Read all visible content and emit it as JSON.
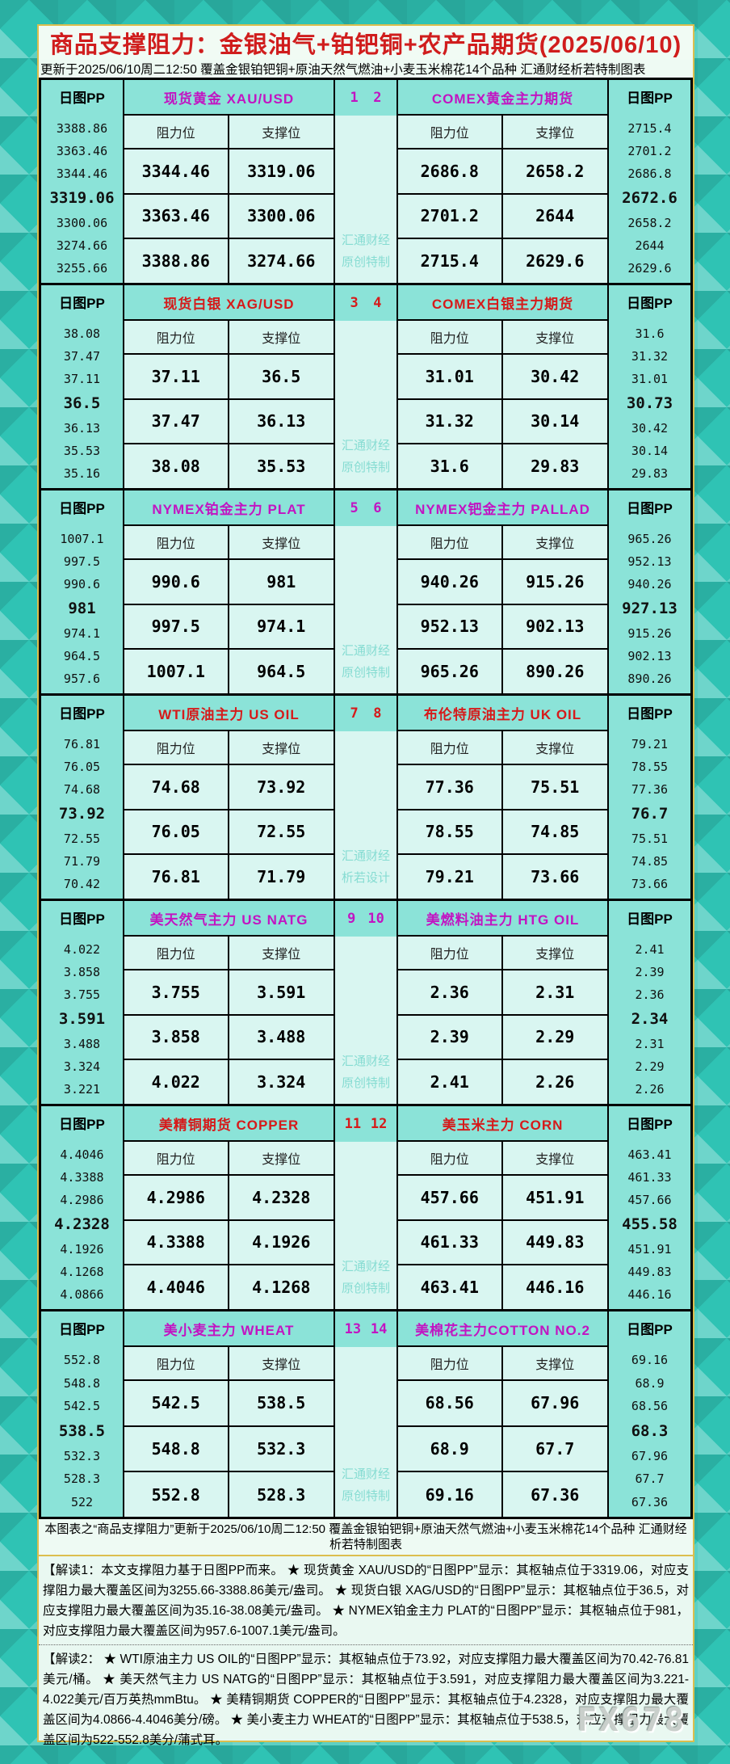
{
  "title": "商品支撑阻力：金银油气+铂钯铜+农产品期货(2025/06/10)",
  "subtitle": "更新于2025/06/10周二12:50  覆盖金银铂钯铜+原油天然气燃油+小麦玉米棉花14个品种  汇通财经析若特制图表",
  "footer_note": "本图表之“商品支撑阻力”更新于2025/06/10周二12:50  覆盖金银铂钯铜+原油天然气燃油+小麦玉米棉花14个品种  汇通财经析若特制图表",
  "interpretation1": "【解读1：本文支撑阻力基于日图PP而来。 ★ 现货黄金 XAU/USD的“日图PP”显示：其枢轴点位于3319.06，对应支撑阻力最大覆盖区间为3255.66-3388.86美元/盎司。 ★ 现货白银 XAG/USD的“日图PP”显示：其枢轴点位于36.5，对应支撑阻力最大覆盖区间为35.16-38.08美元/盎司。 ★ NYMEX铂金主力 PLAT的“日图PP”显示：其枢轴点位于981，对应支撑阻力最大覆盖区间为957.6-1007.1美元/盎司。",
  "interpretation2": "【解读2： ★ WTI原油主力 US OIL的“日图PP”显示：其枢轴点位于73.92，对应支撑阻力最大覆盖区间为70.42-76.81美元/桶。 ★ 美天然气主力 US NATG的“日图PP”显示：其枢轴点位于3.591，对应支撑阻力最大覆盖区间为3.221-4.022美元/百万英热mmBtu。 ★ 美精铜期货 COPPER的“日图PP”显示：其枢轴点位于4.2328，对应支撑阻力最大覆盖区间为4.0866-4.4046美分/磅。 ★ 美小麦主力 WHEAT的“日图PP”显示：其枢轴点位于538.5，对应支撑阻力最大覆盖区间为522-552.8美分/蒲式耳。",
  "fx_watermark": "FX678",
  "chart_data": {
    "type": "table",
    "title": "商品支撑阻力：金银油气+铂钯铜+农产品期货(2025/06/10)",
    "updated": "2025/06/10周二12:50",
    "labels": {
      "pp_header": "日图PP",
      "resistance": "阻力位",
      "support": "支撑位"
    },
    "accent_colors": {
      "magenta": "#c214c2",
      "red": "#d61a1a"
    },
    "panels": [
      {
        "index_left": "1",
        "index_right": "2",
        "accent": "magenta",
        "watermark": [
          "汇通财经",
          "原创特制"
        ],
        "left": {
          "title": "现货黄金 XAU/USD",
          "pp": [
            "3388.86",
            "3363.46",
            "3344.46",
            "3319.06",
            "3300.06",
            "3274.66",
            "3255.66"
          ],
          "rows": [
            [
              "3344.46",
              "3319.06"
            ],
            [
              "3363.46",
              "3300.06"
            ],
            [
              "3388.86",
              "3274.66"
            ]
          ]
        },
        "right": {
          "title": "COMEX黄金主力期货",
          "pp": [
            "2715.4",
            "2701.2",
            "2686.8",
            "2672.6",
            "2658.2",
            "2644",
            "2629.6"
          ],
          "rows": [
            [
              "2686.8",
              "2658.2"
            ],
            [
              "2701.2",
              "2644"
            ],
            [
              "2715.4",
              "2629.6"
            ]
          ]
        }
      },
      {
        "index_left": "3",
        "index_right": "4",
        "accent": "red",
        "watermark": [
          "汇通财经",
          "原创特制"
        ],
        "left": {
          "title": "现货白银 XAG/USD",
          "pp": [
            "38.08",
            "37.47",
            "37.11",
            "36.5",
            "36.13",
            "35.53",
            "35.16"
          ],
          "rows": [
            [
              "37.11",
              "36.5"
            ],
            [
              "37.47",
              "36.13"
            ],
            [
              "38.08",
              "35.53"
            ]
          ]
        },
        "right": {
          "title": "COMEX白银主力期货",
          "pp": [
            "31.6",
            "31.32",
            "31.01",
            "30.73",
            "30.42",
            "30.14",
            "29.83"
          ],
          "rows": [
            [
              "31.01",
              "30.42"
            ],
            [
              "31.32",
              "30.14"
            ],
            [
              "31.6",
              "29.83"
            ]
          ]
        }
      },
      {
        "index_left": "5",
        "index_right": "6",
        "accent": "magenta",
        "watermark": [
          "汇通财经",
          "原创特制"
        ],
        "left": {
          "title": "NYMEX铂金主力 PLAT",
          "pp": [
            "1007.1",
            "997.5",
            "990.6",
            "981",
            "974.1",
            "964.5",
            "957.6"
          ],
          "rows": [
            [
              "990.6",
              "981"
            ],
            [
              "997.5",
              "974.1"
            ],
            [
              "1007.1",
              "964.5"
            ]
          ]
        },
        "right": {
          "title": "NYMEX钯金主力 PALLAD",
          "pp": [
            "965.26",
            "952.13",
            "940.26",
            "927.13",
            "915.26",
            "902.13",
            "890.26"
          ],
          "rows": [
            [
              "940.26",
              "915.26"
            ],
            [
              "952.13",
              "902.13"
            ],
            [
              "965.26",
              "890.26"
            ]
          ]
        }
      },
      {
        "index_left": "7",
        "index_right": "8",
        "accent": "red",
        "watermark": [
          "汇通财经",
          "析若设计"
        ],
        "left": {
          "title": "WTI原油主力 US OIL",
          "pp": [
            "76.81",
            "76.05",
            "74.68",
            "73.92",
            "72.55",
            "71.79",
            "70.42"
          ],
          "rows": [
            [
              "74.68",
              "73.92"
            ],
            [
              "76.05",
              "72.55"
            ],
            [
              "76.81",
              "71.79"
            ]
          ]
        },
        "right": {
          "title": "布伦特原油主力 UK OIL",
          "pp": [
            "79.21",
            "78.55",
            "77.36",
            "76.7",
            "75.51",
            "74.85",
            "73.66"
          ],
          "rows": [
            [
              "77.36",
              "75.51"
            ],
            [
              "78.55",
              "74.85"
            ],
            [
              "79.21",
              "73.66"
            ]
          ]
        }
      },
      {
        "index_left": "9",
        "index_right": "10",
        "accent": "magenta",
        "watermark": [
          "汇通财经",
          "原创特制"
        ],
        "left": {
          "title": "美天然气主力 US NATG",
          "pp": [
            "4.022",
            "3.858",
            "3.755",
            "3.591",
            "3.488",
            "3.324",
            "3.221"
          ],
          "rows": [
            [
              "3.755",
              "3.591"
            ],
            [
              "3.858",
              "3.488"
            ],
            [
              "4.022",
              "3.324"
            ]
          ]
        },
        "right": {
          "title": "美燃料油主力 HTG OIL",
          "pp": [
            "2.41",
            "2.39",
            "2.36",
            "2.34",
            "2.31",
            "2.29",
            "2.26"
          ],
          "rows": [
            [
              "2.36",
              "2.31"
            ],
            [
              "2.39",
              "2.29"
            ],
            [
              "2.41",
              "2.26"
            ]
          ]
        }
      },
      {
        "index_left": "11",
        "index_right": "12",
        "accent": "red",
        "watermark": [
          "汇通财经",
          "原创特制"
        ],
        "left": {
          "title": "美精铜期货 COPPER",
          "pp": [
            "4.4046",
            "4.3388",
            "4.2986",
            "4.2328",
            "4.1926",
            "4.1268",
            "4.0866"
          ],
          "rows": [
            [
              "4.2986",
              "4.2328"
            ],
            [
              "4.3388",
              "4.1926"
            ],
            [
              "4.4046",
              "4.1268"
            ]
          ]
        },
        "right": {
          "title": "美玉米主力 CORN",
          "pp": [
            "463.41",
            "461.33",
            "457.66",
            "455.58",
            "451.91",
            "449.83",
            "446.16"
          ],
          "rows": [
            [
              "457.66",
              "451.91"
            ],
            [
              "461.33",
              "449.83"
            ],
            [
              "463.41",
              "446.16"
            ]
          ]
        }
      },
      {
        "index_left": "13",
        "index_right": "14",
        "accent": "magenta",
        "watermark": [
          "汇通财经",
          "原创特制"
        ],
        "left": {
          "title": "美小麦主力 WHEAT",
          "pp": [
            "552.8",
            "548.8",
            "542.5",
            "538.5",
            "532.3",
            "528.3",
            "522"
          ],
          "rows": [
            [
              "542.5",
              "538.5"
            ],
            [
              "548.8",
              "532.3"
            ],
            [
              "552.8",
              "528.3"
            ]
          ]
        },
        "right": {
          "title": "美棉花主力COTTON NO.2",
          "pp": [
            "69.16",
            "68.9",
            "68.56",
            "68.3",
            "67.96",
            "67.7",
            "67.36"
          ],
          "rows": [
            [
              "68.56",
              "67.96"
            ],
            [
              "68.9",
              "67.7"
            ],
            [
              "69.16",
              "67.36"
            ]
          ]
        }
      }
    ]
  }
}
